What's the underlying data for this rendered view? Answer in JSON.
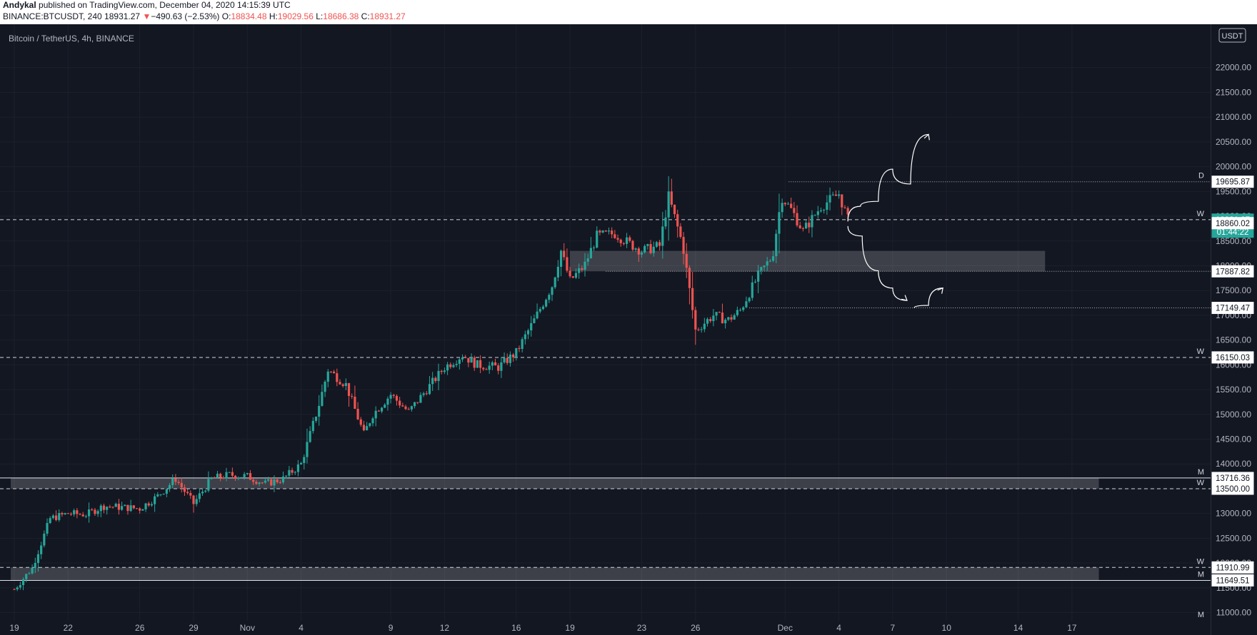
{
  "header": {
    "author": "Andykal",
    "published": "published on TradingView.com, December 04, 2020 14:15:39 UTC",
    "symbol": "BINANCE:BTCUSDT, 240",
    "last": "18931.27",
    "change_arrow": "▼",
    "change": "−490.63 (−2.53%)",
    "o_label": "O:",
    "o": "18834.48",
    "h_label": "H:",
    "h": "19029.56",
    "l_label": "L:",
    "l": "18686.38",
    "c_label": "C:",
    "c": "18931.27"
  },
  "chart_data": {
    "type": "candlestick",
    "title": "Bitcoin / TetherUS, 4h, BINANCE",
    "currency": "USDT",
    "ylim": [
      11000,
      22500
    ],
    "y_ticks": [
      "11000.00",
      "11500.00",
      "12000.00",
      "12500.00",
      "13000.00",
      "13500.00",
      "14000.00",
      "14500.00",
      "15000.00",
      "15500.00",
      "16000.00",
      "16500.00",
      "17000.00",
      "17500.00",
      "18000.00",
      "18500.00",
      "19000.00",
      "19500.00",
      "20000.00",
      "20500.00",
      "21000.00",
      "21500.00",
      "22000.00"
    ],
    "x_ticks": [
      {
        "label": "19",
        "day": 0
      },
      {
        "label": "22",
        "day": 3
      },
      {
        "label": "26",
        "day": 7
      },
      {
        "label": "29",
        "day": 10
      },
      {
        "label": "Nov",
        "day": 13
      },
      {
        "label": "4",
        "day": 16
      },
      {
        "label": "9",
        "day": 21
      },
      {
        "label": "12",
        "day": 24
      },
      {
        "label": "16",
        "day": 28
      },
      {
        "label": "19",
        "day": 31
      },
      {
        "label": "23",
        "day": 35
      },
      {
        "label": "26",
        "day": 38
      },
      {
        "label": "Dec",
        "day": 43
      },
      {
        "label": "4",
        "day": 46
      },
      {
        "label": "7",
        "day": 49
      },
      {
        "label": "10",
        "day": 52
      },
      {
        "label": "14",
        "day": 56
      },
      {
        "label": "17",
        "day": 59
      }
    ],
    "path": [
      [
        0,
        11470
      ],
      [
        1,
        11900
      ],
      [
        2,
        12900
      ],
      [
        3,
        13000
      ],
      [
        4,
        12980
      ],
      [
        5,
        13150
      ],
      [
        7,
        13100
      ],
      [
        8,
        13350
      ],
      [
        9,
        13700
      ],
      [
        10,
        13200
      ],
      [
        11,
        13700
      ],
      [
        12,
        13780
      ],
      [
        13,
        13750
      ],
      [
        14,
        13600
      ],
      [
        15,
        13700
      ],
      [
        16,
        14000
      ],
      [
        17,
        15200
      ],
      [
        17.5,
        15900
      ],
      [
        18.5,
        15600
      ],
      [
        19.5,
        14600
      ],
      [
        20,
        15000
      ],
      [
        21,
        15400
      ],
      [
        22,
        15050
      ],
      [
        23,
        15500
      ],
      [
        24,
        15950
      ],
      [
        25,
        16200
      ],
      [
        25.8,
        16000
      ],
      [
        27,
        15950
      ],
      [
        28,
        16250
      ],
      [
        29,
        16900
      ],
      [
        30,
        17600
      ],
      [
        30.5,
        18300
      ],
      [
        31,
        17700
      ],
      [
        31.8,
        18000
      ],
      [
        32.5,
        18600
      ],
      [
        33.5,
        18650
      ],
      [
        34.3,
        18450
      ],
      [
        35,
        18300
      ],
      [
        36,
        18400
      ],
      [
        36.5,
        19400
      ],
      [
        37.3,
        18400
      ],
      [
        38,
        16700
      ],
      [
        39,
        17000
      ],
      [
        39.8,
        16900
      ],
      [
        40.5,
        17100
      ],
      [
        41.5,
        17800
      ],
      [
        42.3,
        18200
      ],
      [
        42.8,
        19400
      ],
      [
        43.4,
        19100
      ],
      [
        44,
        18700
      ],
      [
        45,
        19200
      ],
      [
        46,
        19450
      ],
      [
        46.5,
        18930
      ]
    ],
    "levels": [
      {
        "price": 19695.87,
        "label": "19695.87",
        "tag": "D",
        "style": "dotted"
      },
      {
        "price": 18931.27,
        "label": "18931.27",
        "tag": "W",
        "style": "dashed",
        "current": true
      },
      {
        "price": 18860.02,
        "label": "18860.02",
        "tag": "",
        "style": "none"
      },
      {
        "price": 17887.82,
        "label": "17887.82",
        "tag": "",
        "style": "dotted"
      },
      {
        "price": 17149.47,
        "label": "17149.47",
        "tag": "",
        "style": "dotted"
      },
      {
        "price": 16150.03,
        "label": "16150.03",
        "tag": "W",
        "style": "dashed"
      },
      {
        "price": 13716.36,
        "label": "13716.36",
        "tag": "M",
        "style": "solid"
      },
      {
        "price": 13500.0,
        "label": "13500.00",
        "tag": "W",
        "style": "dashed"
      },
      {
        "price": 11910.99,
        "label": "11910.99",
        "tag": "W",
        "style": "dashed"
      },
      {
        "price": 11649.51,
        "label": "11649.51",
        "tag": "M",
        "style": "solid"
      }
    ],
    "countdown": "01:44:22",
    "bottom_tag": "M",
    "zones": [
      {
        "from": 17887.82,
        "to": 18300,
        "start_day": 31,
        "end_day": 57.5
      },
      {
        "from": 13500,
        "to": 13716.36,
        "start_day": -0.2,
        "end_day": 60.5
      },
      {
        "from": 11649.51,
        "to": 11910.99,
        "start_day": -0.2,
        "end_day": 60.5
      }
    ],
    "projection_up": [
      [
        46.5,
        18900
      ],
      [
        47.2,
        19200
      ],
      [
        48.2,
        19300
      ],
      [
        49,
        19950
      ],
      [
        50,
        19650
      ],
      [
        51,
        20650
      ]
    ],
    "projection_down": [
      [
        46.5,
        18800
      ],
      [
        47.3,
        18600
      ],
      [
        48.2,
        17900
      ],
      [
        49,
        17550
      ],
      [
        49.8,
        17300
      ]
    ],
    "projection_rebound": [
      [
        50.2,
        17150
      ],
      [
        51,
        17200
      ],
      [
        51.8,
        17550
      ]
    ]
  }
}
